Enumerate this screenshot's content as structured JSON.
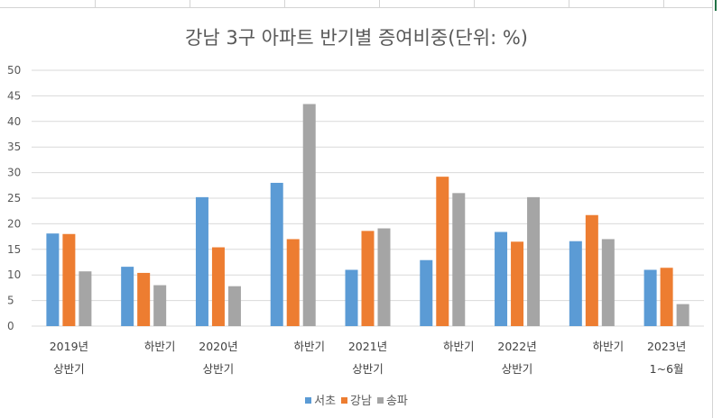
{
  "chart_data": {
    "type": "bar",
    "title": "강남 3구 아파트 반기별 증여비중(단위: %)",
    "categories": [
      [
        "2019년",
        "상반기"
      ],
      [
        "하반기"
      ],
      [
        "2020년",
        "상반기"
      ],
      [
        "하반기"
      ],
      [
        "2021년",
        "상반기"
      ],
      [
        "하반기"
      ],
      [
        "2022년",
        "상반기"
      ],
      [
        "하반기"
      ],
      [
        "2023년",
        "1~6월"
      ]
    ],
    "series": [
      {
        "name": "서초",
        "color": "#5b9bd5",
        "values": [
          18.1,
          11.6,
          25.2,
          28.0,
          11.0,
          12.9,
          18.4,
          16.6,
          11.0
        ]
      },
      {
        "name": "강남",
        "color": "#ed7d31",
        "values": [
          18.0,
          10.4,
          15.4,
          17.0,
          18.6,
          29.2,
          16.5,
          21.7,
          11.4
        ]
      },
      {
        "name": "송파",
        "color": "#a5a5a5",
        "values": [
          10.7,
          8.0,
          7.8,
          43.4,
          19.1,
          26.0,
          25.2,
          17.0,
          4.3
        ]
      }
    ],
    "ylim": [
      0,
      50
    ],
    "yticks": [
      0,
      5,
      10,
      15,
      20,
      25,
      30,
      35,
      40,
      45,
      50
    ],
    "grid": true,
    "legend": "bottom"
  }
}
